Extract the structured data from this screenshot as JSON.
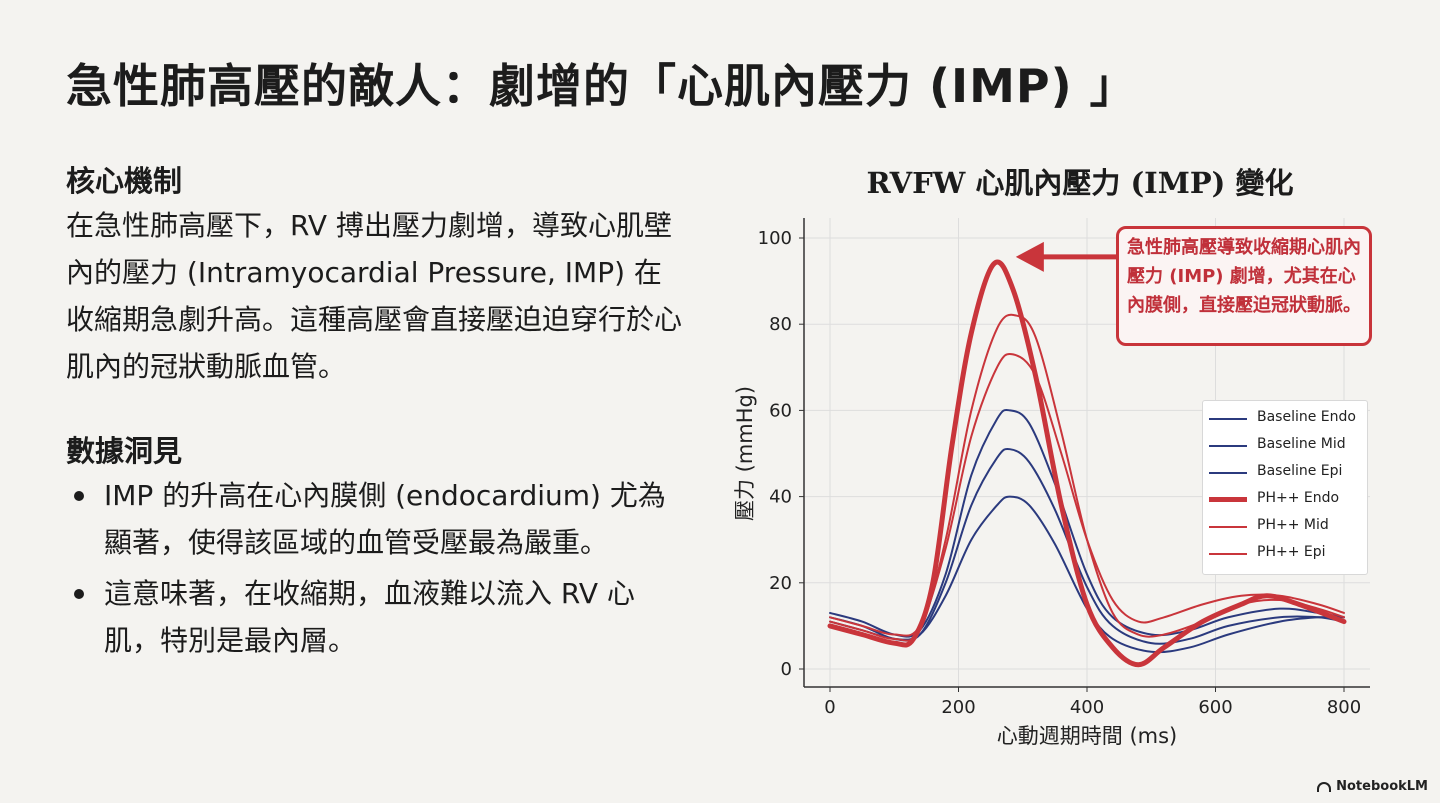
{
  "page": {
    "title": "急性肺高壓的敵人：劇增的「心肌內壓力 (IMP) 」"
  },
  "left": {
    "section1_heading": "核心機制",
    "section1_text": "在急性肺高壓下，RV 搏出壓力劇增，導致心肌壁內的壓力 (Intramyocardial Pressure, IMP)  在收縮期急劇升高。這種高壓會直接壓迫迫穿行於心肌內的冠狀動脈血管。",
    "section2_heading": "數據洞見",
    "bullets": [
      "IMP 的升高在心內膜側 (endocardium) 尤為顯著，使得該區域的血管受壓最為嚴重。",
      "這意味著，在收縮期，血液難以流入 RV 心肌，特別是最內層。"
    ]
  },
  "chart_data": {
    "type": "line",
    "title": "RVFW 心肌內壓力 (IMP) 變化",
    "xlabel": "心動週期時間 (ms)",
    "ylabel": "壓力 (mmHg)",
    "xlim": [
      0,
      800
    ],
    "ylim": [
      0,
      100
    ],
    "xticks": [
      0,
      200,
      400,
      600,
      800
    ],
    "yticks": [
      0,
      20,
      40,
      60,
      80,
      100
    ],
    "grid": true,
    "legend_position": "right",
    "annotation": "急性肺高壓導致收縮期心肌內壓力 (IMP) 劇增，尤其在心內膜側，直接壓迫冠狀動脈。",
    "series": [
      {
        "name": "Baseline Endo",
        "color": "#2b3a7e",
        "width": 2,
        "points": [
          [
            0,
            13
          ],
          [
            50,
            11
          ],
          [
            100,
            8
          ],
          [
            140,
            9
          ],
          [
            180,
            22
          ],
          [
            220,
            45
          ],
          [
            260,
            58
          ],
          [
            280,
            60
          ],
          [
            310,
            57
          ],
          [
            350,
            43
          ],
          [
            400,
            22
          ],
          [
            440,
            12
          ],
          [
            500,
            8
          ],
          [
            560,
            9
          ],
          [
            620,
            12
          ],
          [
            700,
            14
          ],
          [
            760,
            13
          ],
          [
            800,
            12
          ]
        ]
      },
      {
        "name": "Baseline Mid",
        "color": "#2b3a7e",
        "width": 2,
        "points": [
          [
            0,
            12
          ],
          [
            50,
            10
          ],
          [
            100,
            7
          ],
          [
            140,
            8
          ],
          [
            180,
            20
          ],
          [
            220,
            38
          ],
          [
            260,
            49
          ],
          [
            280,
            51
          ],
          [
            310,
            48
          ],
          [
            350,
            37
          ],
          [
            400,
            19
          ],
          [
            440,
            10
          ],
          [
            500,
            6
          ],
          [
            560,
            7
          ],
          [
            620,
            10
          ],
          [
            700,
            12
          ],
          [
            760,
            12
          ],
          [
            800,
            11
          ]
        ]
      },
      {
        "name": "Baseline Epi",
        "color": "#2b3a7e",
        "width": 2,
        "points": [
          [
            0,
            11
          ],
          [
            50,
            9
          ],
          [
            100,
            7
          ],
          [
            140,
            8
          ],
          [
            180,
            17
          ],
          [
            220,
            30
          ],
          [
            260,
            38
          ],
          [
            280,
            40
          ],
          [
            310,
            38
          ],
          [
            350,
            29
          ],
          [
            400,
            14
          ],
          [
            440,
            7
          ],
          [
            500,
            4
          ],
          [
            560,
            5
          ],
          [
            620,
            8
          ],
          [
            700,
            11
          ],
          [
            760,
            12
          ],
          [
            800,
            12
          ]
        ]
      },
      {
        "name": "PH++ Endo",
        "color": "#c9353b",
        "width": 5,
        "points": [
          [
            0,
            10
          ],
          [
            50,
            8
          ],
          [
            100,
            6
          ],
          [
            130,
            7
          ],
          [
            160,
            20
          ],
          [
            190,
            52
          ],
          [
            220,
            78
          ],
          [
            255,
            94
          ],
          [
            285,
            88
          ],
          [
            320,
            68
          ],
          [
            360,
            38
          ],
          [
            400,
            15
          ],
          [
            440,
            5
          ],
          [
            480,
            1
          ],
          [
            520,
            5
          ],
          [
            580,
            11
          ],
          [
            640,
            15
          ],
          [
            680,
            17
          ],
          [
            730,
            15
          ],
          [
            800,
            11
          ]
        ]
      },
      {
        "name": "PH++ Mid",
        "color": "#c9353b",
        "width": 2,
        "points": [
          [
            0,
            11
          ],
          [
            50,
            9
          ],
          [
            100,
            7
          ],
          [
            140,
            9
          ],
          [
            180,
            30
          ],
          [
            220,
            60
          ],
          [
            260,
            79
          ],
          [
            290,
            82
          ],
          [
            320,
            77
          ],
          [
            360,
            55
          ],
          [
            400,
            30
          ],
          [
            440,
            13
          ],
          [
            480,
            8
          ],
          [
            520,
            8
          ],
          [
            580,
            11
          ],
          [
            640,
            15
          ],
          [
            700,
            16
          ],
          [
            760,
            14
          ],
          [
            800,
            12
          ]
        ]
      },
      {
        "name": "PH++ Epi",
        "color": "#c9353b",
        "width": 2,
        "points": [
          [
            0,
            12
          ],
          [
            50,
            10
          ],
          [
            100,
            8
          ],
          [
            140,
            10
          ],
          [
            180,
            28
          ],
          [
            220,
            54
          ],
          [
            260,
            70
          ],
          [
            285,
            73
          ],
          [
            320,
            68
          ],
          [
            360,
            50
          ],
          [
            400,
            30
          ],
          [
            440,
            16
          ],
          [
            480,
            11
          ],
          [
            520,
            12
          ],
          [
            580,
            15
          ],
          [
            640,
            17
          ],
          [
            700,
            17
          ],
          [
            760,
            15
          ],
          [
            800,
            13
          ]
        ]
      }
    ]
  }
}
